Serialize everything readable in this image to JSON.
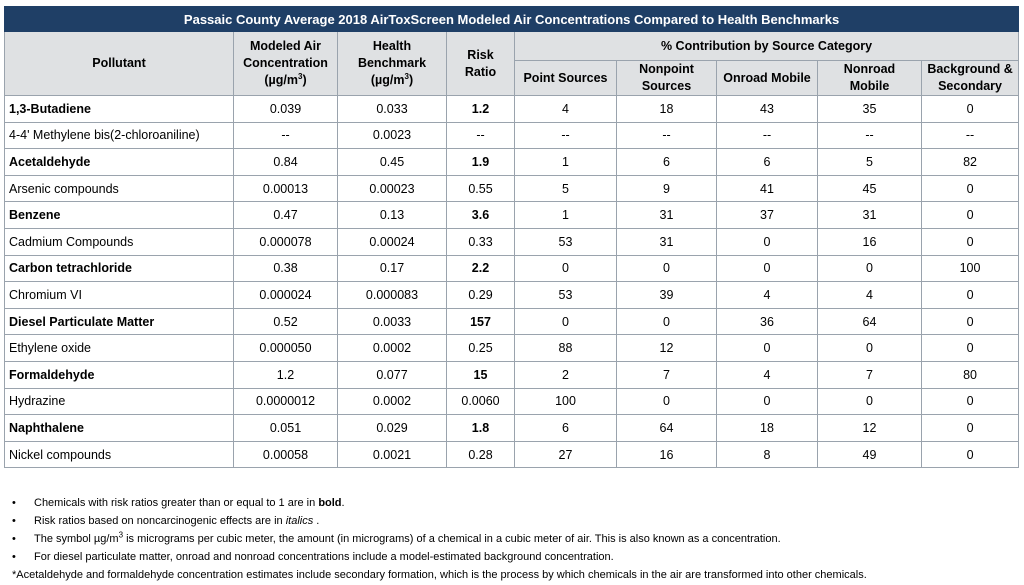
{
  "title": "Passaic County Average 2018 AirToxScreen Modeled Air Concentrations Compared to Health Benchmarks",
  "headers": {
    "pollutant": "Pollutant",
    "modeled_line1": "Modeled Air",
    "modeled_line2": "Concentration",
    "modeled_unit": "(µg/m",
    "benchmark_line1": "Health",
    "benchmark_line2": "Benchmark",
    "benchmark_unit": "(µg/m",
    "unit_sup": "3",
    "unit_close": ")",
    "risk_line1": "Risk",
    "risk_line2": "Ratio",
    "contribution": "% Contribution by Source Category",
    "point": "Point Sources",
    "nonpoint_line1": "Nonpoint",
    "nonpoint_line2": "Sources",
    "onroad": "Onroad Mobile",
    "nonroad_line1": "Nonroad",
    "nonroad_line2": "Mobile",
    "background_line1": "Background &",
    "background_line2": "Secondary"
  },
  "rows": [
    {
      "pollutant": "1,3-Butadiene",
      "modeled": "0.039",
      "benchmark": "0.033",
      "risk": "1.2",
      "point": "4",
      "nonpoint": "18",
      "onroad": "43",
      "nonroad": "35",
      "background": "0",
      "bold": true
    },
    {
      "pollutant": "4-4' Methylene bis(2-chloroaniline)",
      "modeled": "--",
      "benchmark": "0.0023",
      "risk": "--",
      "point": "--",
      "nonpoint": "--",
      "onroad": "--",
      "nonroad": "--",
      "background": "--",
      "bold": false
    },
    {
      "pollutant": "Acetaldehyde",
      "modeled": "0.84",
      "benchmark": "0.45",
      "risk": "1.9",
      "point": "1",
      "nonpoint": "6",
      "onroad": "6",
      "nonroad": "5",
      "background": "82",
      "bold": true
    },
    {
      "pollutant": "Arsenic compounds",
      "modeled": "0.00013",
      "benchmark": "0.00023",
      "risk": "0.55",
      "point": "5",
      "nonpoint": "9",
      "onroad": "41",
      "nonroad": "45",
      "background": "0",
      "bold": false
    },
    {
      "pollutant": "Benzene",
      "modeled": "0.47",
      "benchmark": "0.13",
      "risk": "3.6",
      "point": "1",
      "nonpoint": "31",
      "onroad": "37",
      "nonroad": "31",
      "background": "0",
      "bold": true
    },
    {
      "pollutant": "Cadmium Compounds",
      "modeled": "0.000078",
      "benchmark": "0.00024",
      "risk": "0.33",
      "point": "53",
      "nonpoint": "31",
      "onroad": "0",
      "nonroad": "16",
      "background": "0",
      "bold": false
    },
    {
      "pollutant": "Carbon tetrachloride",
      "modeled": "0.38",
      "benchmark": "0.17",
      "risk": "2.2",
      "point": "0",
      "nonpoint": "0",
      "onroad": "0",
      "nonroad": "0",
      "background": "100",
      "bold": true
    },
    {
      "pollutant": "Chromium VI",
      "modeled": "0.000024",
      "benchmark": "0.000083",
      "risk": "0.29",
      "point": "53",
      "nonpoint": "39",
      "onroad": "4",
      "nonroad": "4",
      "background": "0",
      "bold": false
    },
    {
      "pollutant": "Diesel Particulate Matter",
      "modeled": "0.52",
      "benchmark": "0.0033",
      "risk": "157",
      "point": "0",
      "nonpoint": "0",
      "onroad": "36",
      "nonroad": "64",
      "background": "0",
      "bold": true
    },
    {
      "pollutant": "Ethylene oxide",
      "modeled": "0.000050",
      "benchmark": "0.0002",
      "risk": "0.25",
      "point": "88",
      "nonpoint": "12",
      "onroad": "0",
      "nonroad": "0",
      "background": "0",
      "bold": false
    },
    {
      "pollutant": "Formaldehyde",
      "modeled": "1.2",
      "benchmark": "0.077",
      "risk": "15",
      "point": "2",
      "nonpoint": "7",
      "onroad": "4",
      "nonroad": "7",
      "background": "80",
      "bold": true
    },
    {
      "pollutant": "Hydrazine",
      "modeled": "0.0000012",
      "benchmark": "0.0002",
      "risk": "0.0060",
      "point": "100",
      "nonpoint": "0",
      "onroad": "0",
      "nonroad": "0",
      "background": "0",
      "bold": false
    },
    {
      "pollutant": "Naphthalene",
      "modeled": "0.051",
      "benchmark": "0.029",
      "risk": "1.8",
      "point": "6",
      "nonpoint": "64",
      "onroad": "18",
      "nonroad": "12",
      "background": "0",
      "bold": true
    },
    {
      "pollutant": "Nickel compounds",
      "modeled": "0.00058",
      "benchmark": "0.0021",
      "risk": "0.28",
      "point": "27",
      "nonpoint": "16",
      "onroad": "8",
      "nonroad": "49",
      "background": "0",
      "bold": false
    }
  ],
  "notes": {
    "bullet": "•",
    "n1_pre": "Chemicals with risk ratios greater than or equal to 1 are in ",
    "n1_bold": "bold",
    "n1_post": ".",
    "n2_pre": "Risk ratios based on noncarcinogenic effects are in ",
    "n2_italic": "italics",
    "n2_post": " .",
    "n3_pre": "The symbol µg/m",
    "n3_sup": "3",
    "n3_post": " is micrograms per cubic meter, the amount (in micrograms) of a chemical in a cubic meter of air. This is also known as a concentration.",
    "n4": "For diesel particulate matter, onroad and nonroad concentrations include a model-estimated background concentration.",
    "n5": "*Acetaldehyde and formaldehyde concentration estimates include secondary formation, which is the process by which chemicals in the air are transformed into other chemicals."
  }
}
